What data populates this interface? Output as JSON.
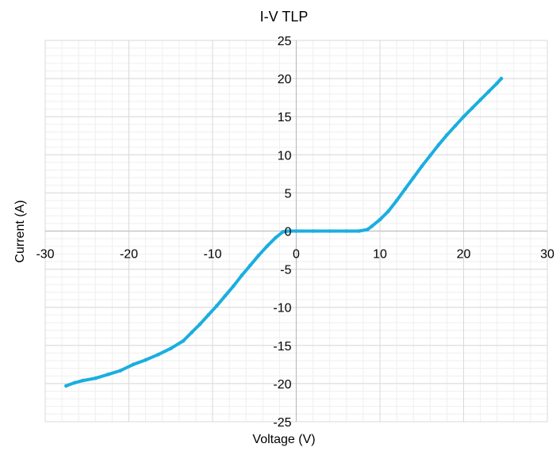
{
  "chart_data": {
    "type": "scatter",
    "title": "I-V TLP",
    "xlabel": "Voltage (V)",
    "ylabel": "Current (A)",
    "xlim": [
      -30,
      30
    ],
    "ylim": [
      -25,
      25
    ],
    "x_major_step": 10,
    "y_major_step": 5,
    "grid": true,
    "minor_grid": true,
    "legend": "none",
    "x_ticks": [
      -30,
      -20,
      -10,
      0,
      10,
      20,
      30
    ],
    "y_ticks": [
      25,
      20,
      15,
      10,
      5,
      0,
      -5,
      -10,
      -15,
      -20,
      -25
    ],
    "colors": {
      "series": "#1AAEE0",
      "major_grid": "#D9D9D9",
      "minor_grid": "#EFEFEF",
      "axis": "#BFBFBF"
    },
    "series": [
      {
        "marker": "line-dots",
        "points": [
          [
            -27.5,
            -20.3
          ],
          [
            -26.5,
            -19.9
          ],
          [
            -25.5,
            -19.6
          ],
          [
            -24.0,
            -19.3
          ],
          [
            -22.5,
            -18.8
          ],
          [
            -21.0,
            -18.3
          ],
          [
            -19.5,
            -17.5
          ],
          [
            -18.0,
            -16.9
          ],
          [
            -16.5,
            -16.2
          ],
          [
            -15.0,
            -15.4
          ],
          [
            -13.5,
            -14.4
          ],
          [
            -12.5,
            -13.3
          ],
          [
            -11.5,
            -12.2
          ],
          [
            -10.5,
            -11.0
          ],
          [
            -9.5,
            -9.8
          ],
          [
            -8.5,
            -8.5
          ],
          [
            -7.5,
            -7.2
          ],
          [
            -6.5,
            -5.8
          ],
          [
            -5.5,
            -4.5
          ],
          [
            -4.5,
            -3.2
          ],
          [
            -3.5,
            -2.0
          ],
          [
            -2.5,
            -0.9
          ],
          [
            -1.6,
            -0.1
          ],
          [
            -1.0,
            0.0
          ],
          [
            0.0,
            0.0
          ],
          [
            2.0,
            0.0
          ],
          [
            4.0,
            0.0
          ],
          [
            6.0,
            0.0
          ],
          [
            7.5,
            0.0
          ],
          [
            8.5,
            0.2
          ],
          [
            9.0,
            0.6
          ],
          [
            10.0,
            1.5
          ],
          [
            11.0,
            2.6
          ],
          [
            12.0,
            4.0
          ],
          [
            13.0,
            5.5
          ],
          [
            14.0,
            7.0
          ],
          [
            15.0,
            8.5
          ],
          [
            16.0,
            9.9
          ],
          [
            17.0,
            11.3
          ],
          [
            18.0,
            12.6
          ],
          [
            19.0,
            13.8
          ],
          [
            20.0,
            15.0
          ],
          [
            21.0,
            16.1
          ],
          [
            22.0,
            17.2
          ],
          [
            23.0,
            18.3
          ],
          [
            24.0,
            19.4
          ],
          [
            24.5,
            20.0
          ]
        ]
      }
    ]
  }
}
